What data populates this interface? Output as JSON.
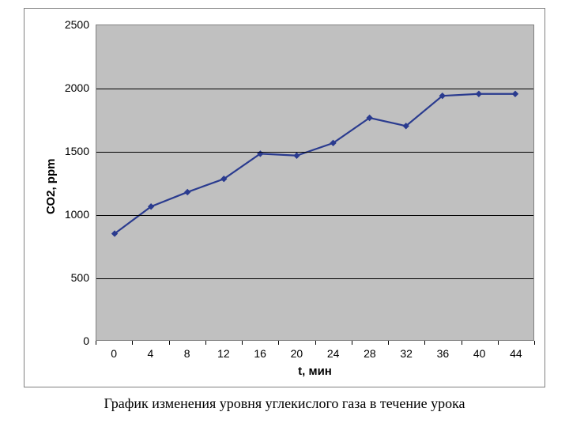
{
  "chart": {
    "type": "line",
    "plot_background": "#c0c0c0",
    "outer_background": "#ffffff",
    "border_color": "#808080",
    "grid_color": "#000000",
    "line_color": "#2a3b8f",
    "marker_color": "#2a3b8f",
    "line_width": 2.2,
    "marker_size": 7,
    "marker_shape": "diamond",
    "x_values": [
      0,
      4,
      8,
      12,
      16,
      20,
      24,
      28,
      32,
      36,
      40,
      44
    ],
    "y_values": [
      845,
      1060,
      1175,
      1280,
      1480,
      1465,
      1565,
      1765,
      1700,
      1940,
      1955,
      1955
    ],
    "ylim": [
      0,
      2500
    ],
    "ytick_step": 500,
    "yticks": [
      0,
      500,
      1000,
      1500,
      2000,
      2500
    ],
    "xlim": [
      0,
      44
    ],
    "xtick_step": 4,
    "xticks": [
      0,
      4,
      8,
      12,
      16,
      20,
      24,
      28,
      32,
      36,
      40,
      44
    ],
    "ylabel": "СО2, ppm",
    "xlabel": "t, мин",
    "label_fontsize": 15,
    "tick_fontsize": 14
  },
  "caption": "График изменения уровня углекислого газа в течение урока"
}
